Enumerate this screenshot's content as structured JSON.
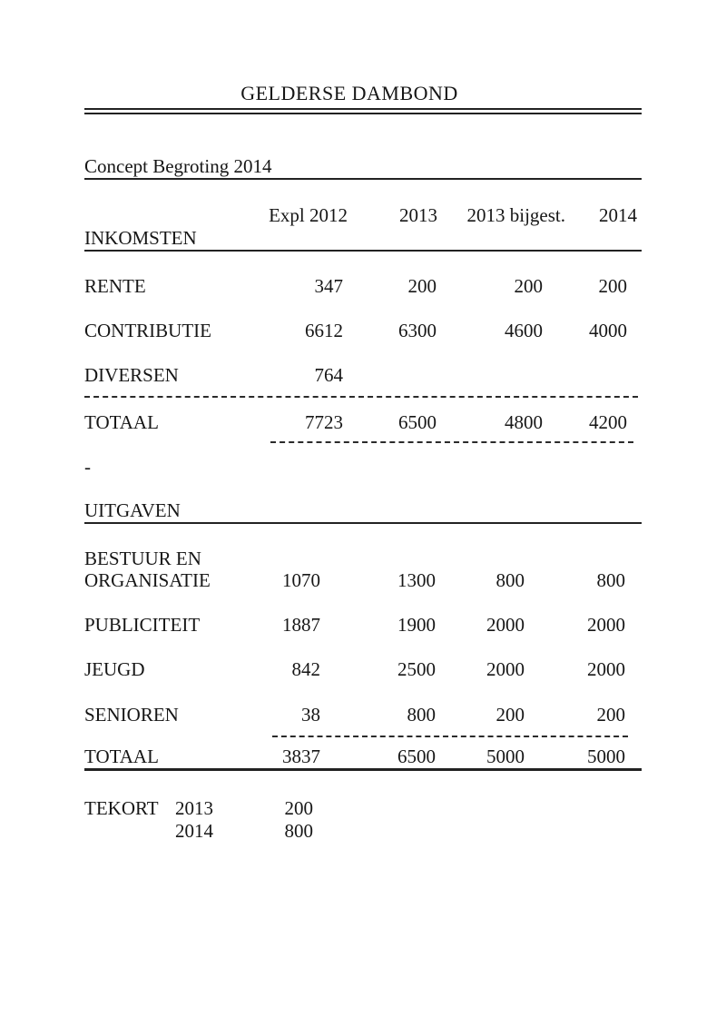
{
  "page": {
    "title": "GELDERSE DAMBOND",
    "subtitle": "Concept Begroting 2014",
    "stray_dash": "-",
    "text_color": "#161616",
    "background_color": "#ffffff"
  },
  "table": {
    "columns": [
      "Expl 2012",
      "2013",
      "2013 bijgest.",
      "2014"
    ],
    "inkomsten": {
      "heading": "INKOMSTEN",
      "rows": [
        {
          "label": "RENTE",
          "values": [
            "347",
            "200",
            "200",
            "200"
          ]
        },
        {
          "label": "CONTRIBUTIE",
          "values": [
            "6612",
            "6300",
            "4600",
            "4000"
          ]
        },
        {
          "label": "DIVERSEN",
          "values": [
            "764",
            "",
            "",
            ""
          ]
        }
      ],
      "total": {
        "label": "TOTAAL",
        "values": [
          "7723",
          "6500",
          "4800",
          "4200"
        ]
      }
    },
    "uitgaven": {
      "heading": "UITGAVEN",
      "rows": [
        {
          "label_line1": "BESTUUR EN",
          "label_line2": "ORGANISATIE",
          "values": [
            "1070",
            "1300",
            "800",
            "800"
          ]
        },
        {
          "label": "PUBLICITEIT",
          "values": [
            "1887",
            "1900",
            "2000",
            "2000"
          ]
        },
        {
          "label": "JEUGD",
          "values": [
            "842",
            "2500",
            "2000",
            "2000"
          ]
        },
        {
          "label": "SENIOREN",
          "values": [
            "38",
            "800",
            "200",
            "200"
          ]
        }
      ],
      "total": {
        "label": "TOTAAL",
        "values": [
          "3837",
          "6500",
          "5000",
          "5000"
        ]
      }
    },
    "tekort": {
      "label": "TEKORT",
      "entries": [
        {
          "year": "2013",
          "value": "200"
        },
        {
          "year": "2014",
          "value": "800"
        }
      ]
    }
  }
}
